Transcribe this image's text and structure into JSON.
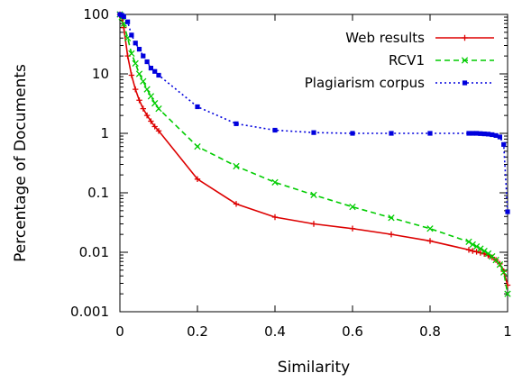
{
  "chart_data": {
    "type": "line",
    "title": "",
    "xlabel": "Similarity",
    "ylabel": "Percentage of Documents",
    "xlim": [
      0,
      1
    ],
    "ylim": [
      0.001,
      100
    ],
    "yscale": "log",
    "grid": false,
    "legend_position": "top-right",
    "x_ticks": [
      "0",
      "0.2",
      "0.4",
      "0.6",
      "0.8",
      "1"
    ],
    "y_ticks": [
      "0.001",
      "0.01",
      "0.1",
      "1",
      "10",
      "100"
    ],
    "series": [
      {
        "name": "Web results",
        "color": "#dd0000",
        "style": "solid",
        "marker": "plus",
        "points": [
          [
            0.0,
            100
          ],
          [
            0.005,
            90
          ],
          [
            0.01,
            60
          ],
          [
            0.02,
            20
          ],
          [
            0.03,
            9.5
          ],
          [
            0.04,
            5.5
          ],
          [
            0.05,
            3.6
          ],
          [
            0.06,
            2.6
          ],
          [
            0.07,
            2.0
          ],
          [
            0.08,
            1.6
          ],
          [
            0.09,
            1.3
          ],
          [
            0.1,
            1.1
          ],
          [
            0.2,
            0.17
          ],
          [
            0.3,
            0.065
          ],
          [
            0.4,
            0.039
          ],
          [
            0.5,
            0.03
          ],
          [
            0.6,
            0.025
          ],
          [
            0.7,
            0.02
          ],
          [
            0.8,
            0.0155
          ],
          [
            0.9,
            0.011
          ],
          [
            0.91,
            0.0105
          ],
          [
            0.92,
            0.0102
          ],
          [
            0.93,
            0.0098
          ],
          [
            0.94,
            0.0094
          ],
          [
            0.95,
            0.0088
          ],
          [
            0.96,
            0.0082
          ],
          [
            0.97,
            0.0074
          ],
          [
            0.98,
            0.0064
          ],
          [
            0.99,
            0.0048
          ],
          [
            1.0,
            0.0028
          ]
        ]
      },
      {
        "name": "RCV1",
        "color": "#00cc00",
        "style": "dashed",
        "marker": "x",
        "points": [
          [
            0.0,
            100
          ],
          [
            0.005,
            90
          ],
          [
            0.01,
            70
          ],
          [
            0.02,
            40
          ],
          [
            0.03,
            22
          ],
          [
            0.04,
            15
          ],
          [
            0.05,
            10
          ],
          [
            0.06,
            7.5
          ],
          [
            0.07,
            5.5
          ],
          [
            0.08,
            4.2
          ],
          [
            0.09,
            3.2
          ],
          [
            0.1,
            2.6
          ],
          [
            0.2,
            0.6
          ],
          [
            0.3,
            0.28
          ],
          [
            0.4,
            0.15
          ],
          [
            0.5,
            0.092
          ],
          [
            0.6,
            0.058
          ],
          [
            0.7,
            0.038
          ],
          [
            0.8,
            0.025
          ],
          [
            0.9,
            0.015
          ],
          [
            0.91,
            0.0135
          ],
          [
            0.92,
            0.0125
          ],
          [
            0.93,
            0.0115
          ],
          [
            0.94,
            0.0105
          ],
          [
            0.95,
            0.0095
          ],
          [
            0.96,
            0.0085
          ],
          [
            0.97,
            0.0074
          ],
          [
            0.98,
            0.0062
          ],
          [
            0.99,
            0.0046
          ],
          [
            1.0,
            0.002
          ]
        ]
      },
      {
        "name": "Plagiarism corpus",
        "color": "#0000dd",
        "style": "dotted",
        "marker": "square",
        "points": [
          [
            0.0,
            100
          ],
          [
            0.005,
            97
          ],
          [
            0.01,
            92
          ],
          [
            0.02,
            75
          ],
          [
            0.03,
            45
          ],
          [
            0.04,
            33
          ],
          [
            0.05,
            26
          ],
          [
            0.06,
            20
          ],
          [
            0.07,
            16
          ],
          [
            0.08,
            12.5
          ],
          [
            0.09,
            11
          ],
          [
            0.1,
            9.5
          ],
          [
            0.2,
            2.8
          ],
          [
            0.3,
            1.45
          ],
          [
            0.4,
            1.13
          ],
          [
            0.5,
            1.03
          ],
          [
            0.6,
            1.0
          ],
          [
            0.7,
            1.0
          ],
          [
            0.8,
            1.0
          ],
          [
            0.9,
            1.0
          ],
          [
            0.91,
            1.0
          ],
          [
            0.92,
            1.0
          ],
          [
            0.93,
            0.99
          ],
          [
            0.94,
            0.98
          ],
          [
            0.95,
            0.97
          ],
          [
            0.96,
            0.95
          ],
          [
            0.97,
            0.92
          ],
          [
            0.98,
            0.87
          ],
          [
            0.99,
            0.65
          ],
          [
            1.0,
            0.048
          ]
        ]
      }
    ]
  }
}
